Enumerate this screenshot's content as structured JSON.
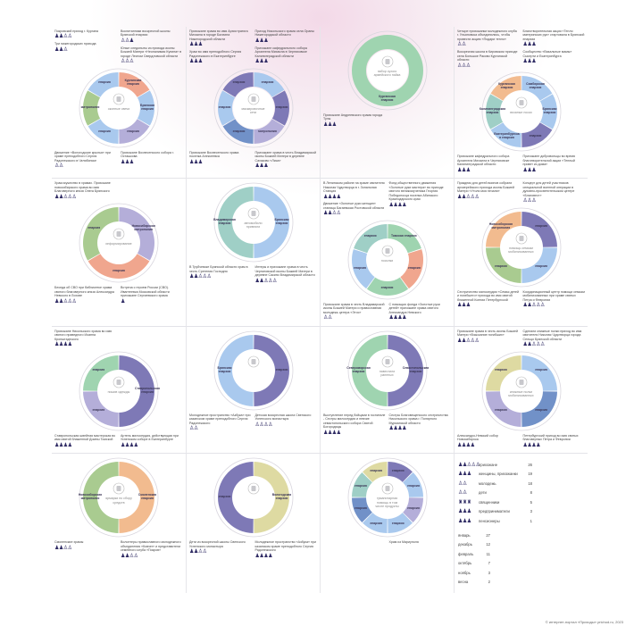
{
  "colors": {
    "green": "#9fd4b0",
    "salmon": "#f0a68e",
    "lavender": "#b4aed9",
    "purple": "#7e79b6",
    "blue": "#a9c9ee",
    "sage": "#a9cb90",
    "teal": "#9fcfc6",
    "beige": "#dedaa2",
    "orange": "#f2bb8f",
    "steel": "#7191c8",
    "ring": "#d9d6de",
    "people": "#2e2a63"
  },
  "cells": [
    {
      "title": "окопные свечи",
      "segments": [
        {
          "label": "Курганская епархия",
          "color": "salmon",
          "v": 1
        },
        {
          "label": "Брянская епархия",
          "color": "blue",
          "v": 1
        },
        {
          "label": "епархия",
          "color": "lavender",
          "v": 1
        },
        {
          "label": "епархия",
          "color": "blue",
          "v": 1
        },
        {
          "label": "митрополия",
          "color": "sage",
          "v": 1
        },
        {
          "label": "епархия",
          "color": "blue",
          "v": 1
        }
      ],
      "notes": [
        {
          "slot": "tl",
          "text": "Покровский приход г. Кургана",
          "ppl": "♟♟♙♙"
        },
        {
          "slot": "tr",
          "text": "Воспитанники воскресной школы Брянской епархии",
          "ppl": "♙♙♟"
        },
        {
          "slot": "r",
          "text": "Юные следопыты из прихода иконы Божией Матери «Неопалимая Купина» в городе Лесном Свердловской области",
          "ppl": "♙♙♙"
        },
        {
          "slot": "l",
          "text": "Три нижегородских прихода",
          "ppl": "♟♟♙"
        },
        {
          "slot": "bl",
          "text": "Движение «Вологодские крылья» при храме преподобного Сергия Радонежского в Челябинске",
          "ppl": "♙♙"
        },
        {
          "slot": "br",
          "text": "Прихожане Вознесенского собора г. Осташкова",
          "ppl": "♟♟♟"
        }
      ]
    },
    {
      "title": "маскировочные сети",
      "segments": [
        {
          "label": "епархия",
          "color": "blue",
          "v": 1
        },
        {
          "label": "епархия",
          "color": "purple",
          "v": 1
        },
        {
          "label": "митрополия",
          "color": "lavender",
          "v": 1
        },
        {
          "label": "епархия",
          "color": "steel",
          "v": 1
        },
        {
          "label": "епархия",
          "color": "blue",
          "v": 1
        },
        {
          "label": "епархия",
          "color": "purple",
          "v": 1
        }
      ],
      "notes": [
        {
          "slot": "tl",
          "text": "Прихожане храма во имя Архистратига Михаила в городе Балахна Нижегородской области",
          "ppl": "♟♟♟"
        },
        {
          "slot": "tr",
          "text": "Приход Никольского храма села Ораны Нижегородской области",
          "ppl": "♟♟♟"
        },
        {
          "slot": "r",
          "text": "Прихожане кафедрального собора Архангела Михаила в Черняховске Калининградской области",
          "ppl": "♟♟♟"
        },
        {
          "slot": "l",
          "text": "Храм во имя преподобного Сергия Радонежского в Екатеринбурге",
          "ppl": "♟♟♟"
        },
        {
          "slot": "bl",
          "text": "Прихожане Вознесенского храма поселка Алексеевка",
          "ppl": "♟♟♟"
        },
        {
          "slot": "br",
          "text": "Прихожане храма в честь Владимирской иконы Божией Матери в деревне Сахаково «Лиса»",
          "ppl": "♟♟♟"
        }
      ]
    },
    {
      "title": "набор сухого армейского пайка",
      "segments": [
        {
          "label": "Курганская епархия",
          "color": "green",
          "v": 1
        }
      ],
      "notes": [
        {
          "slot": "bl",
          "text": "Прихожане Андреевского храма города Тулы",
          "ppl": "♟♟♟"
        }
      ]
    },
    {
      "title": "вязаные носки",
      "segments": [
        {
          "label": "Симбирская епархия",
          "color": "blue",
          "v": 1
        },
        {
          "label": "Брянская епархия",
          "color": "blue",
          "v": 1
        },
        {
          "label": "епархия",
          "color": "purple",
          "v": 1
        },
        {
          "label": "Екатеринбургская епархия",
          "color": "blue",
          "v": 1
        },
        {
          "label": "Калининградская епархия",
          "color": "teal",
          "v": 1
        },
        {
          "label": "Курганская епархия",
          "color": "orange",
          "v": 1
        }
      ],
      "notes": [
        {
          "slot": "tl",
          "text": "Четыре прихожанки молодежного клуба г. Ульяновска объединились, чтобы провести акцию «Подари тепло»",
          "ppl": "♙♙"
        },
        {
          "slot": "tr",
          "text": "Благотворительная акция «Тепло материнских рук» стартовала в Брянской епархии",
          "ppl": "♟♟♟"
        },
        {
          "slot": "r",
          "text": "Сообщество «Вязальные мамы» Сысерти и Екатеринбурга",
          "ppl": "♟♟♟"
        },
        {
          "slot": "l",
          "text": "Воскресная школа в Кировском приходе села Большое Раково Курганской области",
          "ppl": "♙♙♙"
        },
        {
          "slot": "bl",
          "text": "Прихожане кафедрального собора Архангела Михаила в Черняховске Калининградской области",
          "ppl": "♟♟♟"
        },
        {
          "slot": "br",
          "text": "Прихожане добровольцы во время благотворительной акции «Теплый привет из дома»",
          "ppl": "♟♟♟"
        }
      ]
    },
    {
      "title": "информирование",
      "segments": [
        {
          "label": "Новосибирская митрополия",
          "color": "lavender",
          "v": 1
        },
        {
          "label": "епархия",
          "color": "salmon",
          "v": 1
        },
        {
          "label": "епархия",
          "color": "sage",
          "v": 1
        }
      ],
      "notes": [
        {
          "slot": "tl",
          "text": "Храм-мужество в храмах. Прихожане новосибирского храма во имя Благоверного князя Олега Брянского",
          "ppl": "♟♟♙♙♙"
        },
        {
          "slot": "bl",
          "text": "Беседа об СВО при библиотеке храма святого благоверного князя Александра Невского в Лохове",
          "ppl": "♟♟♙♙♙"
        },
        {
          "slot": "br",
          "text": "Встреча с героем России (СВО). Ивантеевка Московской области прихожане Сергиевского храма",
          "ppl": "♟"
        }
      ]
    },
    {
      "title": "автомобили привезли",
      "segments": [
        {
          "label": "Брянская епархия",
          "color": "blue",
          "v": 1
        },
        {
          "label": "Владимирская епархия",
          "color": "teal",
          "v": 1
        }
      ],
      "notes": [
        {
          "slot": "bl",
          "text": "В Трубчевске Брянской области храм в честь Сретения Господня",
          "ppl": "♟♟♙♙♙"
        },
        {
          "slot": "br",
          "text": "Интеры и прихожане храма в честь Черниговской иконы Божией Матери в деревне Сакино Владимирской области",
          "ppl": "♟♟♙♙♙"
        }
      ]
    },
    {
      "title": "носилки",
      "segments": [
        {
          "label": "Томская епархия",
          "color": "green",
          "v": 1
        },
        {
          "label": "епархия",
          "color": "salmon",
          "v": 1
        },
        {
          "label": "епархия",
          "color": "green",
          "v": 1
        },
        {
          "label": "епархия",
          "color": "blue",
          "v": 1
        },
        {
          "label": "епархия",
          "color": "teal",
          "v": 1
        }
      ],
      "notes": [
        {
          "slot": "tl",
          "text": "В Ленинском районе на храме святителя Николая Чудотворца в г. Зональная Станция",
          "ppl": "♟♟♟♟"
        },
        {
          "slot": "tr",
          "text": "Фонд общественного движения «Золотые руки мастера» во приходе святого великомученика Георгия Победоносца поселка Абинского Краснодарского края",
          "ppl": "♟♟♟♟"
        },
        {
          "slot": "l",
          "text": "Движение «Золотые руки женщин» станицы Багаевская Ростовской области",
          "ppl": "♟♟♙♙"
        },
        {
          "slot": "bl",
          "text": "Прихожане храма в честь Владимирской иконы Божией Матери и православная молодежь центра «Этос»",
          "ppl": "♙♙"
        },
        {
          "slot": "br",
          "text": "С помощью фонда «Золотые руки детей» прихожане храма святого Александра Невского",
          "ppl": "♟♟♟♟"
        }
      ]
    },
    {
      "title": "помощь семьям мобилизованных",
      "segments": [
        {
          "label": "епархия",
          "color": "purple",
          "v": 1
        },
        {
          "label": "епархия",
          "color": "blue",
          "v": 1
        },
        {
          "label": "епархия",
          "color": "sage",
          "v": 1
        },
        {
          "label": "Новосибирская митрополия",
          "color": "orange",
          "v": 1
        }
      ],
      "notes": [
        {
          "slot": "tl",
          "text": "Праздник для детей воинов собрали архиерейского прихода иконы Божией Матери «Утоли моя печали»",
          "ppl": "♟♟♙♙♙"
        },
        {
          "slot": "tr",
          "text": "Концерт для детей участников специальной военной операции в духовно-просветительском центре «Благовест»",
          "ppl": "♙♙♙"
        },
        {
          "slot": "bl",
          "text": "Сестричество милосердия «Семья детей и погибшего» прихода во имя святой блаженной Ксении Петербургской",
          "ppl": "♟♟♟"
        },
        {
          "slot": "br",
          "text": "Координационный центр помощи семьям мобилизованных при храме святых Петра и Февронии",
          "ppl": "♟♟♙♙♙"
        }
      ]
    },
    {
      "title": "пошив одежды",
      "segments": [
        {
          "label": "Ставропольская епархия",
          "color": "purple",
          "v": 2
        },
        {
          "label": "епархия",
          "color": "lavender",
          "v": 1
        },
        {
          "label": "епархия",
          "color": "green",
          "v": 1
        }
      ],
      "notes": [
        {
          "slot": "tl",
          "text": "Прихожане Никольского храма во имя святого праведного Иоанна Кронштадтского",
          "ppl": "♟♟♟♟"
        },
        {
          "slot": "bl",
          "text": "Ставропольская швейная мастерская во имя святой блаженной Домны Томской",
          "ppl": "♟♟♟♟"
        },
        {
          "slot": "br",
          "text": "Артель милосердия, действующая при Успенском соборе в Екатеринбурге",
          "ppl": "♟♟♟♟"
        }
      ]
    },
    {
      "title": "",
      "segments": [
        {
          "label": "епархия",
          "color": "purple",
          "v": 1
        },
        {
          "label": "Брянская епархия",
          "color": "blue",
          "v": 1
        }
      ],
      "notes": [
        {
          "slot": "bl",
          "text": "Молодежное пространство «Азбука» при казанском храме преподобного Сергия Радонежского",
          "ppl": "♙♙"
        },
        {
          "slot": "br",
          "text": "Детская воскресная школа Свенского Успенского монастыря",
          "ppl": "♙♙♙♙"
        }
      ]
    },
    {
      "title": "навестили раненых",
      "segments": [
        {
          "label": "Севастопольская епархия",
          "color": "purple",
          "v": 1
        },
        {
          "label": "Североморская епархия",
          "color": "green",
          "v": 1
        }
      ],
      "notes": [
        {
          "slot": "bl",
          "text": "Выступление перед бойцами в госпитале - Сестры милосердия и певчие севастопольского собора Святой Богородицы",
          "ppl": "♟♟♟♟"
        },
        {
          "slot": "br",
          "text": "Сестры Благовещенского сестричества Никольского храма г. Полярного Мурманской области",
          "ppl": "♟♟♟♟"
        }
      ]
    },
    {
      "title": "книжные полки мобилизованных",
      "segments": [
        {
          "label": "епархия",
          "color": "blue",
          "v": 1
        },
        {
          "label": "епархия",
          "color": "steel",
          "v": 1
        },
        {
          "label": "епархия",
          "color": "lavender",
          "v": 1
        },
        {
          "label": "епархия",
          "color": "beige",
          "v": 1
        }
      ],
      "notes": [
        {
          "slot": "tl",
          "text": "Прихожане храма в честь иконы Божией Матери «Взыскание погибших»",
          "ppl": "♟♟♙♙♙"
        },
        {
          "slot": "tr",
          "text": "Сделали книжные полки приход во имя святителя Николая Чудотворца города Сельцо Брянской области",
          "ppl": "♟♟♙♙♙"
        },
        {
          "slot": "bl",
          "text": "Александро-Невский собор Новосибирска",
          "ppl": "♟♟♟♟"
        },
        {
          "slot": "br",
          "text": "Петербургский приход во имя святых благоверных Петра и Февронии",
          "ppl": "♟♟♟♟"
        }
      ]
    },
    {
      "title": "ярмарки по сбору средств",
      "segments": [
        {
          "label": "Смоленская епархия",
          "color": "orange",
          "v": 1
        },
        {
          "label": "Новосибирская митрополия",
          "color": "sage",
          "v": 1
        }
      ],
      "notes": [
        {
          "slot": "bl",
          "text": "Смоленские храмы",
          "ppl": "♟♟♙♙"
        },
        {
          "slot": "br",
          "text": "Волонтеры православного молодежного объединения «Ковчег» и представители семейного клуба «Покров»",
          "ppl": "♟♟♙♙"
        }
      ]
    },
    {
      "title": "",
      "segments": [
        {
          "label": "Вологодская епархия",
          "color": "beige",
          "v": 1
        },
        {
          "label": "епархия",
          "color": "purple",
          "v": 1
        }
      ],
      "notes": [
        {
          "slot": "bl",
          "text": "Дети из воскресной школы Свенского Успенского монастыря",
          "ppl": "♟♟♙♙"
        },
        {
          "slot": "br",
          "text": "Молодежное пространство «Азбука» при казанском храме преподобного Сергия Радонежского",
          "ppl": "♟♟♟♟"
        }
      ]
    },
    {
      "title": "гуманитарная помощь в том числе продукты",
      "segments": [
        {
          "label": "епархия",
          "color": "purple",
          "v": 1
        },
        {
          "label": "епархия",
          "color": "blue",
          "v": 1
        },
        {
          "label": "епархия",
          "color": "lavender",
          "v": 1
        },
        {
          "label": "епархия",
          "color": "blue",
          "v": 1
        },
        {
          "label": "епархия",
          "color": "blue",
          "v": 1
        },
        {
          "label": "епархия",
          "color": "steel",
          "v": 1
        },
        {
          "label": "епархия",
          "color": "teal",
          "v": 1
        },
        {
          "label": "епархия",
          "color": "beige",
          "v": 1
        }
      ],
      "notes": [
        {
          "slot": "br",
          "text": "Храм из Мариуполя",
          "ppl": ""
        }
      ]
    }
  ],
  "legend": {
    "groups": [
      {
        "icon": "♟♟♙♙♙",
        "label": "прихожане",
        "value": 26
      },
      {
        "icon": "♟♟♟",
        "label": "женщины, прихожанки",
        "value": 19
      },
      {
        "icon": "♙♙",
        "label": "молодежь",
        "value": 18
      },
      {
        "icon": "♙♙",
        "label": "дети",
        "value": 8
      },
      {
        "icon": "♜♜♜",
        "label": "священники",
        "value": 5
      },
      {
        "icon": "♟♟♟",
        "label": "предприниматели",
        "value": 3
      },
      {
        "icon": "♟♟♟",
        "label": "пенсионеры",
        "value": 1
      }
    ],
    "months": [
      {
        "label": "январь",
        "value": 27
      },
      {
        "label": "декабрь",
        "value": 12
      },
      {
        "label": "февраль",
        "value": 11
      },
      {
        "label": "октябрь",
        "value": 7
      },
      {
        "label": "ноябрь",
        "value": 3
      },
      {
        "label": "весна",
        "value": 2
      }
    ]
  },
  "footer": "© интернет-портал «Приходы» prichod.ru, 2023"
}
